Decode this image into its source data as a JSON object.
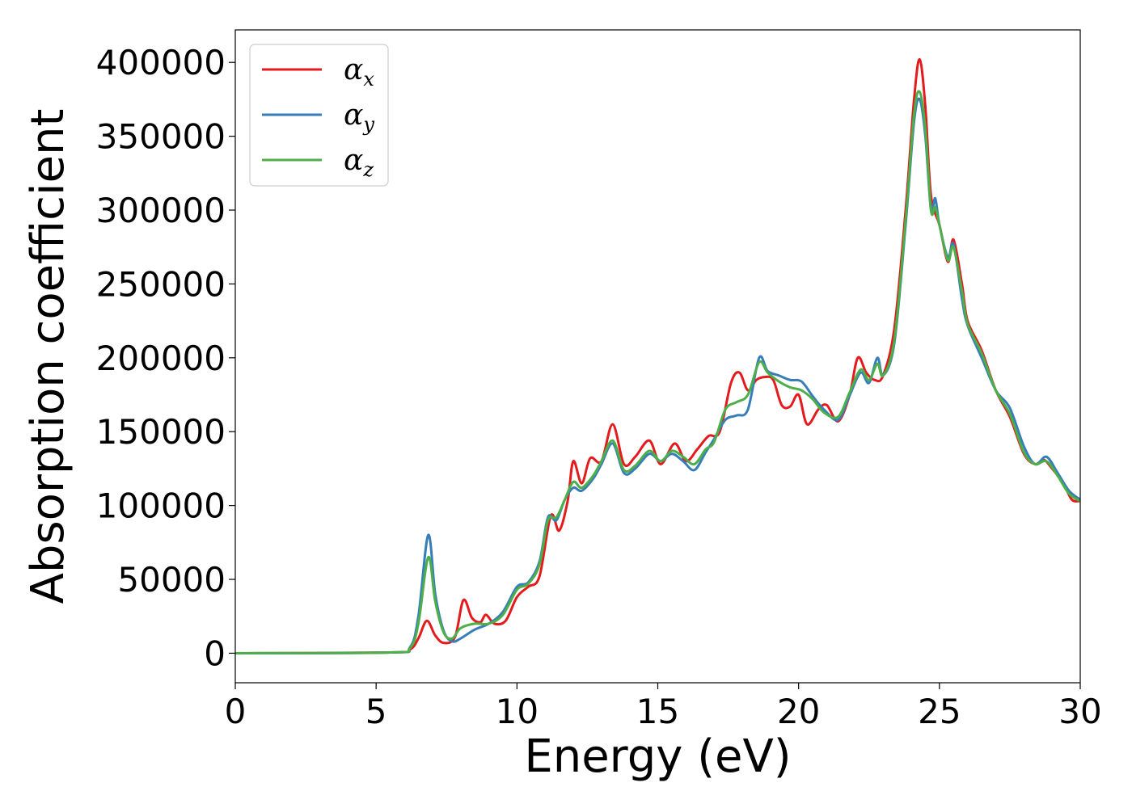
{
  "chart_data": {
    "type": "line",
    "title": "",
    "xlabel": "Energy (eV)",
    "ylabel": "Absorption coefficient",
    "xlim": [
      0,
      30
    ],
    "ylim": [
      -20000,
      422000
    ],
    "xticks": [
      0,
      5,
      10,
      15,
      20,
      25,
      30
    ],
    "yticks": [
      0,
      50000,
      100000,
      150000,
      200000,
      250000,
      300000,
      350000,
      400000
    ],
    "grid": false,
    "legend": "top-left",
    "series": [
      {
        "name": "α",
        "sub": "x",
        "color": "#e41a1c",
        "points": [
          [
            0,
            0
          ],
          [
            5.5,
            500
          ],
          [
            6.2,
            2500
          ],
          [
            6.5,
            10000
          ],
          [
            6.8,
            22000
          ],
          [
            7.1,
            12000
          ],
          [
            7.4,
            7000
          ],
          [
            7.8,
            11000
          ],
          [
            8.1,
            36000
          ],
          [
            8.4,
            24000
          ],
          [
            8.7,
            21000
          ],
          [
            8.9,
            26000
          ],
          [
            9.2,
            20000
          ],
          [
            9.6,
            22000
          ],
          [
            10.0,
            38000
          ],
          [
            10.4,
            45000
          ],
          [
            10.8,
            52000
          ],
          [
            11.2,
            93000
          ],
          [
            11.5,
            83000
          ],
          [
            11.8,
            103000
          ],
          [
            12.0,
            130000
          ],
          [
            12.3,
            115000
          ],
          [
            12.6,
            132000
          ],
          [
            13.0,
            130000
          ],
          [
            13.4,
            155000
          ],
          [
            13.8,
            128000
          ],
          [
            14.2,
            133000
          ],
          [
            14.7,
            144000
          ],
          [
            15.1,
            128000
          ],
          [
            15.6,
            142000
          ],
          [
            16.0,
            130000
          ],
          [
            16.4,
            138000
          ],
          [
            16.8,
            147000
          ],
          [
            17.2,
            150000
          ],
          [
            17.6,
            183000
          ],
          [
            17.9,
            190000
          ],
          [
            18.2,
            178000
          ],
          [
            18.5,
            185000
          ],
          [
            18.8,
            187000
          ],
          [
            19.1,
            185000
          ],
          [
            19.4,
            168000
          ],
          [
            19.7,
            167000
          ],
          [
            20.0,
            175000
          ],
          [
            20.3,
            155000
          ],
          [
            20.7,
            165000
          ],
          [
            21.0,
            168000
          ],
          [
            21.4,
            157000
          ],
          [
            21.8,
            174000
          ],
          [
            22.1,
            200000
          ],
          [
            22.4,
            190000
          ],
          [
            22.7,
            185000
          ],
          [
            23.0,
            188000
          ],
          [
            23.4,
            220000
          ],
          [
            23.8,
            300000
          ],
          [
            24.1,
            375000
          ],
          [
            24.3,
            402000
          ],
          [
            24.5,
            370000
          ],
          [
            24.7,
            310000
          ],
          [
            25.0,
            290000
          ],
          [
            25.3,
            265000
          ],
          [
            25.5,
            280000
          ],
          [
            25.8,
            250000
          ],
          [
            26.0,
            225000
          ],
          [
            26.5,
            205000
          ],
          [
            27.0,
            178000
          ],
          [
            27.5,
            160000
          ],
          [
            28.0,
            135000
          ],
          [
            28.4,
            128000
          ],
          [
            28.7,
            131000
          ],
          [
            29.0,
            125000
          ],
          [
            29.4,
            115000
          ],
          [
            29.7,
            104000
          ],
          [
            30.0,
            103000
          ]
        ]
      },
      {
        "name": "α",
        "sub": "y",
        "color": "#377eb8",
        "points": [
          [
            0,
            0
          ],
          [
            5.5,
            500
          ],
          [
            6.2,
            4000
          ],
          [
            6.5,
            25000
          ],
          [
            6.85,
            80000
          ],
          [
            7.1,
            40000
          ],
          [
            7.4,
            15000
          ],
          [
            7.7,
            8000
          ],
          [
            8.0,
            10000
          ],
          [
            8.5,
            16000
          ],
          [
            9.0,
            20000
          ],
          [
            9.5,
            28000
          ],
          [
            10.0,
            45000
          ],
          [
            10.4,
            48000
          ],
          [
            10.8,
            62000
          ],
          [
            11.1,
            92000
          ],
          [
            11.4,
            90000
          ],
          [
            11.7,
            104000
          ],
          [
            12.0,
            112000
          ],
          [
            12.3,
            110000
          ],
          [
            12.7,
            118000
          ],
          [
            13.0,
            128000
          ],
          [
            13.4,
            142000
          ],
          [
            13.8,
            122000
          ],
          [
            14.2,
            125000
          ],
          [
            14.7,
            135000
          ],
          [
            15.1,
            130000
          ],
          [
            15.5,
            135000
          ],
          [
            15.9,
            130000
          ],
          [
            16.3,
            124000
          ],
          [
            16.7,
            136000
          ],
          [
            17.0,
            145000
          ],
          [
            17.4,
            158000
          ],
          [
            17.8,
            161000
          ],
          [
            18.2,
            165000
          ],
          [
            18.6,
            200000
          ],
          [
            18.9,
            191000
          ],
          [
            19.3,
            188000
          ],
          [
            19.7,
            185000
          ],
          [
            20.1,
            184000
          ],
          [
            20.5,
            174000
          ],
          [
            20.9,
            165000
          ],
          [
            21.4,
            158000
          ],
          [
            21.8,
            174000
          ],
          [
            22.2,
            190000
          ],
          [
            22.5,
            183000
          ],
          [
            22.8,
            200000
          ],
          [
            23.0,
            188000
          ],
          [
            23.4,
            210000
          ],
          [
            23.8,
            290000
          ],
          [
            24.1,
            360000
          ],
          [
            24.3,
            375000
          ],
          [
            24.5,
            350000
          ],
          [
            24.7,
            300000
          ],
          [
            24.85,
            308000
          ],
          [
            25.0,
            290000
          ],
          [
            25.3,
            268000
          ],
          [
            25.5,
            277000
          ],
          [
            25.8,
            240000
          ],
          [
            26.0,
            222000
          ],
          [
            26.5,
            200000
          ],
          [
            27.0,
            178000
          ],
          [
            27.5,
            166000
          ],
          [
            28.0,
            140000
          ],
          [
            28.4,
            128000
          ],
          [
            28.8,
            133000
          ],
          [
            29.2,
            122000
          ],
          [
            29.6,
            110000
          ],
          [
            30.0,
            104000
          ]
        ]
      },
      {
        "name": "α",
        "sub": "z",
        "color": "#4daf4a",
        "points": [
          [
            0,
            0
          ],
          [
            5.5,
            500
          ],
          [
            6.2,
            3500
          ],
          [
            6.5,
            20000
          ],
          [
            6.85,
            65000
          ],
          [
            7.1,
            35000
          ],
          [
            7.4,
            14000
          ],
          [
            7.7,
            10000
          ],
          [
            8.0,
            17000
          ],
          [
            8.5,
            20000
          ],
          [
            9.0,
            20000
          ],
          [
            9.5,
            26000
          ],
          [
            10.0,
            43000
          ],
          [
            10.4,
            47000
          ],
          [
            10.8,
            60000
          ],
          [
            11.1,
            90000
          ],
          [
            11.4,
            92000
          ],
          [
            11.7,
            104000
          ],
          [
            12.0,
            116000
          ],
          [
            12.3,
            112000
          ],
          [
            12.7,
            120000
          ],
          [
            13.0,
            130000
          ],
          [
            13.4,
            144000
          ],
          [
            13.8,
            124000
          ],
          [
            14.2,
            127000
          ],
          [
            14.7,
            137000
          ],
          [
            15.1,
            130000
          ],
          [
            15.5,
            137000
          ],
          [
            15.9,
            133000
          ],
          [
            16.3,
            128000
          ],
          [
            16.7,
            138000
          ],
          [
            17.0,
            143000
          ],
          [
            17.4,
            165000
          ],
          [
            17.8,
            170000
          ],
          [
            18.2,
            175000
          ],
          [
            18.6,
            197000
          ],
          [
            18.9,
            190000
          ],
          [
            19.3,
            184000
          ],
          [
            19.7,
            180000
          ],
          [
            20.1,
            178000
          ],
          [
            20.5,
            172000
          ],
          [
            20.9,
            163000
          ],
          [
            21.4,
            160000
          ],
          [
            21.8,
            176000
          ],
          [
            22.2,
            192000
          ],
          [
            22.5,
            185000
          ],
          [
            22.8,
            196000
          ],
          [
            23.0,
            188000
          ],
          [
            23.4,
            212000
          ],
          [
            23.8,
            293000
          ],
          [
            24.1,
            365000
          ],
          [
            24.3,
            380000
          ],
          [
            24.5,
            355000
          ],
          [
            24.7,
            300000
          ],
          [
            24.85,
            302000
          ],
          [
            25.0,
            290000
          ],
          [
            25.3,
            266000
          ],
          [
            25.5,
            275000
          ],
          [
            25.8,
            245000
          ],
          [
            26.0,
            223000
          ],
          [
            26.5,
            203000
          ],
          [
            27.0,
            178000
          ],
          [
            27.5,
            162000
          ],
          [
            28.0,
            136000
          ],
          [
            28.4,
            128000
          ],
          [
            28.8,
            130000
          ],
          [
            29.2,
            120000
          ],
          [
            29.6,
            108000
          ],
          [
            30.0,
            103000
          ]
        ]
      }
    ]
  }
}
